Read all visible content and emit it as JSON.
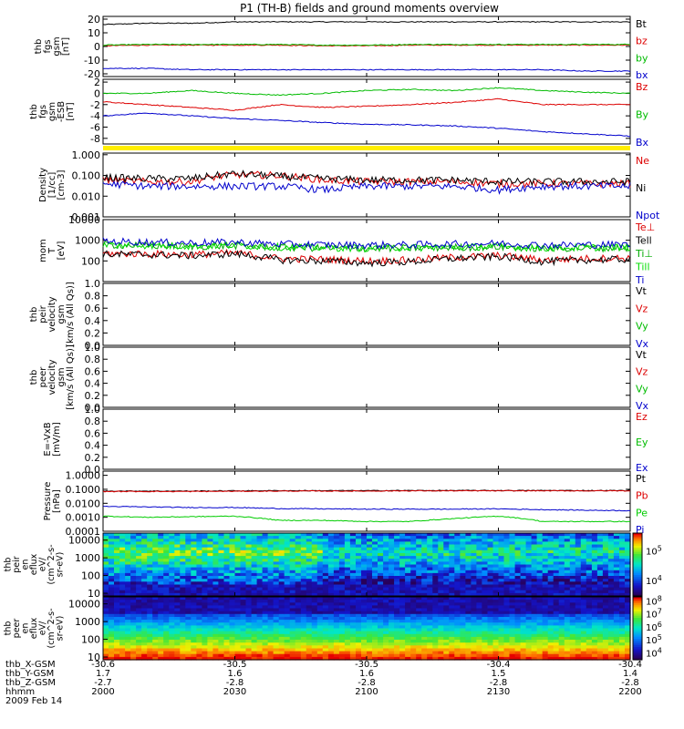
{
  "title": "P1 (TH-B) fields and ground moments overview",
  "chart_data": {
    "type": "line",
    "title": "P1 (TH-B) fields and ground moments overview",
    "date": "2009 Feb 14",
    "x": {
      "ticks": [
        "2000",
        "2030",
        "2100",
        "2130",
        "2200"
      ],
      "range": [
        "2009-02-14 20:00",
        "2009-02-14 22:00"
      ]
    },
    "ephemeris": [
      {
        "label": "thb_X-GSM",
        "values": [
          "-30.6",
          "-30.5",
          "-30.5",
          "-30.4",
          "-30.4"
        ]
      },
      {
        "label": "thb_Y-GSM",
        "values": [
          "1.7",
          "1.6",
          "1.6",
          "1.5",
          "1.4"
        ]
      },
      {
        "label": "thb_Z-GSM",
        "values": [
          "-2.7",
          "-2.8",
          "-2.8",
          "-2.8",
          "-2.8"
        ]
      },
      {
        "label": "hhmm",
        "values": []
      }
    ],
    "panels": [
      {
        "id": "fgs",
        "ylabel": [
          "thb",
          "fgs",
          "gsm",
          "[nT]"
        ],
        "ylim": [
          -22,
          22
        ],
        "log": false,
        "ticks": [
          "20",
          "10",
          "0",
          "-10",
          "-20"
        ],
        "tick_values": [
          20,
          10,
          0,
          -10,
          -20
        ],
        "series": [
          {
            "name": "Bt",
            "color": "#000000",
            "values": [
              16,
              17,
              17,
              18,
              18,
              18,
              18,
              18,
              18,
              18,
              18,
              18,
              18
            ]
          },
          {
            "name": "bz",
            "color": "#dd0000",
            "values": [
              0.5,
              1,
              1,
              1,
              1,
              0.5,
              0.5,
              1,
              1,
              1,
              1,
              1,
              1
            ]
          },
          {
            "name": "by",
            "color": "#00bb00",
            "values": [
              1,
              1.5,
              1.5,
              1.5,
              1.5,
              1,
              1,
              1.5,
              1.5,
              1.5,
              1.5,
              1.5,
              1.5
            ]
          },
          {
            "name": "bx",
            "color": "#0000cc",
            "values": [
              -16,
              -16,
              -17,
              -17,
              -17,
              -17,
              -17,
              -17,
              -17,
              -17,
              -17,
              -18,
              -18
            ]
          }
        ]
      },
      {
        "id": "fgs-dsl",
        "ylabel": [
          "thb",
          "fgs",
          "gsm",
          "-ESB",
          "[nT]"
        ],
        "ylim": [
          -9,
          2.5
        ],
        "log": false,
        "ticks": [
          "2",
          "0",
          "-2",
          "-4",
          "-6",
          "-8"
        ],
        "tick_values": [
          2,
          0,
          -2,
          -4,
          -6,
          -8
        ],
        "series": [
          {
            "name": "Bz",
            "color": "#dd0000",
            "values": [
              -1.5,
              -2,
              -2.5,
              -3,
              -2,
              -2.5,
              -2.3,
              -2,
              -1.6,
              -1,
              -2,
              -2,
              -2
            ]
          },
          {
            "name": "By",
            "color": "#00bb00",
            "values": [
              0,
              0,
              0.5,
              0,
              -0.3,
              0,
              0.5,
              0.7,
              0.5,
              1,
              0.5,
              0.2,
              0
            ]
          },
          {
            "name": "Bx",
            "color": "#0000cc",
            "values": [
              -4,
              -3.5,
              -4,
              -4.5,
              -4.8,
              -5.2,
              -5.5,
              -5.6,
              -5.8,
              -6.2,
              -6.8,
              -7.2,
              -7.6
            ]
          }
        ]
      },
      {
        "id": "density",
        "ylabel": [
          "Density",
          "[1/cc]",
          "[cm-3]"
        ],
        "ylim": [
          0.001,
          1.2
        ],
        "log": true,
        "ticks": [
          "1.000",
          "0.100",
          "0.010",
          "0.001"
        ],
        "tick_values": [
          1,
          0.1,
          0.01,
          0.001
        ],
        "series": [
          {
            "name": "Ne",
            "color": "#dd0000",
            "values": [
              0.06,
              0.05,
              0.05,
              0.11,
              0.1,
              0.06,
              0.05,
              0.05,
              0.05,
              0.04,
              0.04,
              0.04,
              0.04
            ]
          },
          {
            "name": "Ni",
            "color": "#000000",
            "values": [
              0.08,
              0.07,
              0.07,
              0.12,
              0.09,
              0.07,
              0.06,
              0.06,
              0.06,
              0.05,
              0.05,
              0.05,
              0.05
            ]
          },
          {
            "name": "Npot",
            "color": "#0000cc",
            "values": [
              0.04,
              0.03,
              0.03,
              0.03,
              0.03,
              0.02,
              0.03,
              0.03,
              0.03,
              0.02,
              0.03,
              0.03,
              0.03
            ]
          }
        ]
      },
      {
        "id": "temperature",
        "ylabel": [
          "mom",
          "T",
          "[eV]"
        ],
        "ylim": [
          10,
          10000
        ],
        "log": true,
        "ticks": [
          "10000",
          "1000",
          "100"
        ],
        "tick_values": [
          10000,
          1000,
          100
        ],
        "series": [
          {
            "name": "Te⊥",
            "color": "#dd0000",
            "values": [
              230,
              220,
              200,
              240,
              130,
              120,
              100,
              110,
              150,
              180,
              110,
              130,
              140
            ]
          },
          {
            "name": "Tell",
            "color": "#000000",
            "values": [
              210,
              200,
              180,
              220,
              110,
              100,
              80,
              90,
              130,
              160,
              90,
              110,
              120
            ]
          },
          {
            "name": "Ti⊥",
            "color": "#00aa00",
            "values": [
              600,
              550,
              500,
              550,
              450,
              420,
              400,
              420,
              450,
              480,
              400,
              420,
              430
            ]
          },
          {
            "name": "Till",
            "color": "#00dd00",
            "values": [
              620,
              570,
              520,
              570,
              470,
              440,
              420,
              440,
              470,
              500,
              420,
              440,
              450
            ]
          },
          {
            "name": "Ti",
            "color": "#0000cc",
            "values": [
              900,
              800,
              750,
              800,
              650,
              600,
              580,
              600,
              650,
              700,
              580,
              600,
              620
            ]
          }
        ]
      },
      {
        "id": "peir-velocity",
        "ylabel": [
          "thb",
          "peir",
          "velocity",
          "gsm",
          "[km/s (All Qs)]"
        ],
        "ylim": [
          0,
          1
        ],
        "log": false,
        "ticks": [
          "1.0",
          "0.8",
          "0.6",
          "0.4",
          "0.2",
          "0.0"
        ],
        "tick_values": [
          1,
          0.8,
          0.6,
          0.4,
          0.2,
          0
        ],
        "legend": [
          {
            "name": "Vt",
            "color": "#000000"
          },
          {
            "name": "Vz",
            "color": "#dd0000"
          },
          {
            "name": "Vy",
            "color": "#00bb00"
          },
          {
            "name": "Vx",
            "color": "#0000cc"
          }
        ],
        "series": []
      },
      {
        "id": "peer-velocity",
        "ylabel": [
          "thb",
          "peer",
          "velocity",
          "gsm",
          "[km/s (All Qs)]"
        ],
        "ylim": [
          0,
          1
        ],
        "log": false,
        "ticks": [
          "1.0",
          "0.8",
          "0.6",
          "0.4",
          "0.2",
          "0.0"
        ],
        "tick_values": [
          1,
          0.8,
          0.6,
          0.4,
          0.2,
          0
        ],
        "legend": [
          {
            "name": "Vt",
            "color": "#000000"
          },
          {
            "name": "Vz",
            "color": "#dd0000"
          },
          {
            "name": "Vy",
            "color": "#00bb00"
          },
          {
            "name": "Vx",
            "color": "#0000cc"
          }
        ],
        "series": []
      },
      {
        "id": "efield",
        "ylabel": [
          "E=-VxB",
          "[mV/m]"
        ],
        "ylim": [
          0,
          1
        ],
        "log": false,
        "ticks": [
          "1.0",
          "0.8",
          "0.6",
          "0.4",
          "0.2",
          "0.0"
        ],
        "tick_values": [
          1,
          0.8,
          0.6,
          0.4,
          0.2,
          0
        ],
        "legend": [
          {
            "name": "Ez",
            "color": "#dd0000"
          },
          {
            "name": "Ey",
            "color": "#00bb00"
          },
          {
            "name": "Ex",
            "color": "#0000cc"
          }
        ],
        "series": []
      },
      {
        "id": "pressure",
        "ylabel": [
          "Pressure",
          "[nPa]"
        ],
        "ylim": [
          0.0001,
          2
        ],
        "log": true,
        "ticks": [
          "1.0000",
          "0.1000",
          "0.0100",
          "0.0010",
          "0.0001"
        ],
        "tick_values": [
          1,
          0.1,
          0.01,
          0.001,
          0.0001
        ],
        "series": [
          {
            "name": "Pt",
            "color": "#000000",
            "values": [
              0.075,
              0.075,
              0.075,
              0.078,
              0.08,
              0.08,
              0.08,
              0.082,
              0.082,
              0.082,
              0.082,
              0.082,
              0.082
            ]
          },
          {
            "name": "Pb",
            "color": "#dd0000",
            "values": [
              0.07,
              0.07,
              0.07,
              0.072,
              0.075,
              0.075,
              0.075,
              0.078,
              0.078,
              0.078,
              0.078,
              0.078,
              0.078
            ]
          },
          {
            "name": "Pe",
            "color": "#00cc00",
            "values": [
              0.0012,
              0.001,
              0.0011,
              0.0012,
              0.0006,
              0.0006,
              0.0005,
              0.0005,
              0.0008,
              0.0012,
              0.0005,
              0.0005,
              0.0005
            ]
          },
          {
            "name": "Pi",
            "color": "#0000cc",
            "values": [
              0.006,
              0.0055,
              0.005,
              0.005,
              0.0042,
              0.004,
              0.0038,
              0.0038,
              0.0038,
              0.004,
              0.0035,
              0.0032,
              0.003
            ]
          }
        ]
      }
    ],
    "spectrograms": [
      {
        "id": "peir-eflux",
        "type": "heatmap",
        "ylabel": [
          "thb",
          "peir",
          "en",
          "eflux",
          "eV/",
          "(cm^2-s-",
          "sr-eV)"
        ],
        "ylim": [
          7,
          25000
        ],
        "log": true,
        "ticks": [
          "10000",
          "1000",
          "100",
          "10"
        ],
        "tick_values": [
          10000,
          1000,
          100,
          10
        ],
        "colorbar": {
          "ticks": [
            "10^5",
            "10^4"
          ],
          "tick_values": [
            100000,
            10000
          ],
          "range": [
            3000,
            400000
          ]
        }
      },
      {
        "id": "peer-eflux",
        "type": "heatmap",
        "ylabel": [
          "thb",
          "peer",
          "en",
          "eflux",
          "eV/",
          "(cm^2-s-",
          "sr-eV)"
        ],
        "ylim": [
          7,
          25000
        ],
        "log": true,
        "ticks": [
          "10000",
          "1000",
          "100",
          "10"
        ],
        "tick_values": [
          10000,
          1000,
          100,
          10
        ],
        "colorbar": {
          "ticks": [
            "10^8",
            "10^7",
            "10^6",
            "10^5",
            "10^4"
          ],
          "tick_values": [
            100000000,
            10000000,
            1000000,
            100000,
            10000
          ],
          "range": [
            3000,
            200000000
          ]
        }
      }
    ]
  }
}
